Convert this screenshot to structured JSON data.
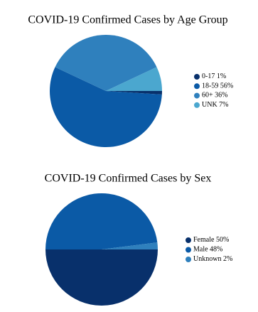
{
  "chart_data": [
    {
      "type": "pie",
      "title": "COVID-19 Confirmed Cases by Age Group",
      "categories": [
        "0-17",
        "18-59",
        "60+",
        "UNK"
      ],
      "values": [
        1,
        56,
        36,
        7
      ],
      "value_labels": [
        "1%",
        "56%",
        "36%",
        "7%"
      ],
      "colors": [
        "#08306b",
        "#0b5aa6",
        "#2f80bd",
        "#4ba7cf"
      ]
    },
    {
      "type": "pie",
      "title": "COVID-19 Confirmed Cases by Sex",
      "categories": [
        "Female",
        "Male",
        "Unknown"
      ],
      "values": [
        50,
        48,
        2
      ],
      "value_labels": [
        "50%",
        "48%",
        "2%"
      ],
      "colors": [
        "#08306b",
        "#0b5aa6",
        "#2f80bd"
      ]
    }
  ]
}
